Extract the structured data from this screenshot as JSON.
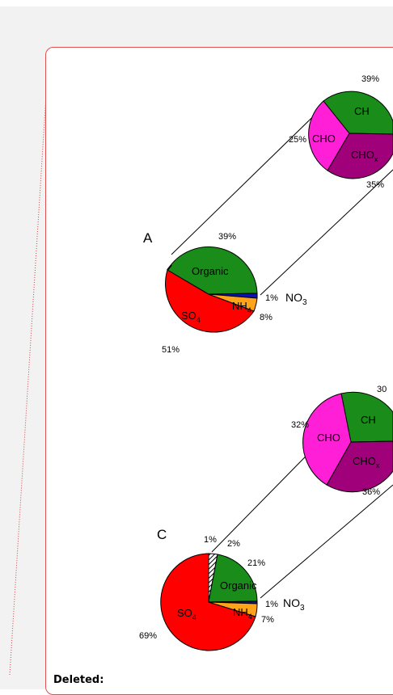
{
  "comment": {
    "deleted_label": "Deleted:"
  },
  "figure": {
    "panel_a": {
      "letter": "A",
      "main_pie": {
        "slices": [
          {
            "name": "Organic",
            "text": "Organic",
            "pct": "39%",
            "color": "#1a8c1a"
          },
          {
            "name": "NO3",
            "text": "NO",
            "pct": "1%",
            "color": "#1010b0"
          },
          {
            "name": "NH4",
            "text": "NH",
            "pct": "8%",
            "color": "#ffa31a"
          },
          {
            "name": "SO4",
            "text": "SO",
            "pct": "51%",
            "color": "#ff0000"
          }
        ]
      },
      "sub_pie": {
        "slices": [
          {
            "name": "CH",
            "text": "CH",
            "pct": "39%",
            "color": "#1a8c1a"
          },
          {
            "name": "CHOx",
            "text": "CHO",
            "pct": "35%",
            "color": "#a0007a"
          },
          {
            "name": "CHO",
            "text": "CHO",
            "pct": "25%",
            "color": "#ff1fd6"
          }
        ]
      }
    },
    "panel_c": {
      "letter": "C",
      "main_pie": {
        "slices": [
          {
            "name": "hatched-1",
            "pct": "1%",
            "color": "#ffffff"
          },
          {
            "name": "hatched-2",
            "pct": "2%",
            "color": "#ffffff"
          },
          {
            "name": "Organic",
            "text": "Organic",
            "pct": "21%",
            "color": "#1a8c1a"
          },
          {
            "name": "NO3",
            "text": "NO",
            "pct": "1%",
            "color": "#1010b0"
          },
          {
            "name": "NH4",
            "text": "NH",
            "pct": "7%",
            "color": "#ffa31a"
          },
          {
            "name": "SO4",
            "text": "SO",
            "pct": "69%",
            "color": "#ff0000"
          }
        ]
      },
      "sub_pie": {
        "slices": [
          {
            "name": "CH",
            "text": "CH",
            "pct": "30",
            "color": "#1a8c1a"
          },
          {
            "name": "CHOx",
            "text": "CHO",
            "pct": "36%",
            "color": "#a0007a"
          },
          {
            "name": "CHO",
            "text": "CHO",
            "pct": "32%",
            "color": "#ff1fd6"
          }
        ]
      }
    },
    "subscripts": {
      "three": "3",
      "four": "4",
      "x": "x"
    }
  }
}
